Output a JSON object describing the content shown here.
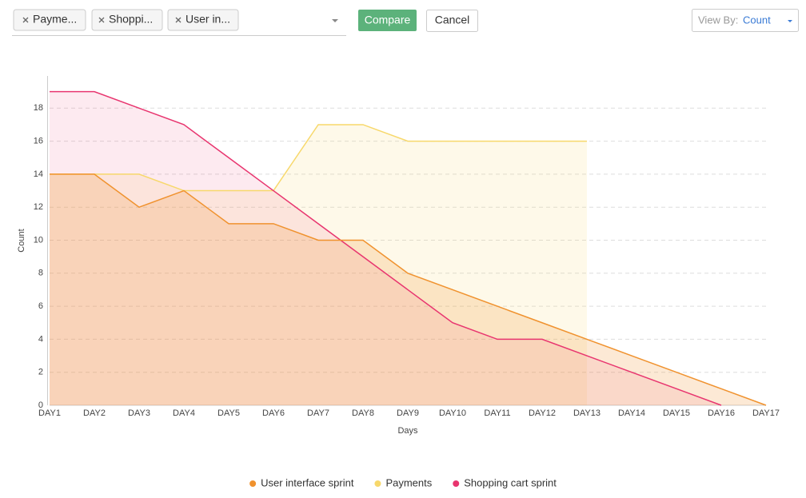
{
  "toolbar": {
    "chips": [
      "Payme...",
      "Shoppi...",
      "User in..."
    ],
    "compare": "Compare",
    "cancel": "Cancel",
    "view_by_label": "View By:",
    "view_by_value": "Count"
  },
  "chart_data": {
    "type": "area",
    "x_label": "Days",
    "y_label": "Count",
    "categories": [
      "DAY1",
      "DAY2",
      "DAY3",
      "DAY4",
      "DAY5",
      "DAY6",
      "DAY7",
      "DAY8",
      "DAY9",
      "DAY10",
      "DAY11",
      "DAY12",
      "DAY13",
      "DAY14",
      "DAY15",
      "DAY16",
      "DAY17"
    ],
    "series": [
      {
        "name": "User interface sprint",
        "color": "#f0922e",
        "values": [
          14,
          14,
          12,
          13,
          11,
          11,
          10,
          10,
          8,
          7,
          6,
          5,
          4,
          3,
          2,
          1,
          0
        ]
      },
      {
        "name": "Payments",
        "color": "#f7d86b",
        "values": [
          14,
          14,
          14,
          13,
          13,
          13,
          17,
          17,
          16,
          16,
          16,
          16,
          16,
          null,
          null,
          null,
          null
        ]
      },
      {
        "name": "Shopping cart sprint",
        "color": "#e8356f",
        "values": [
          19,
          19,
          18,
          17,
          15,
          13,
          11,
          9,
          7,
          5,
          4,
          4,
          3,
          2,
          1,
          0,
          null
        ]
      }
    ],
    "ylim": [
      0,
      20
    ],
    "yticks": [
      0,
      2,
      4,
      6,
      8,
      10,
      12,
      14,
      16,
      18
    ],
    "grid": true,
    "legend": "bottom"
  }
}
